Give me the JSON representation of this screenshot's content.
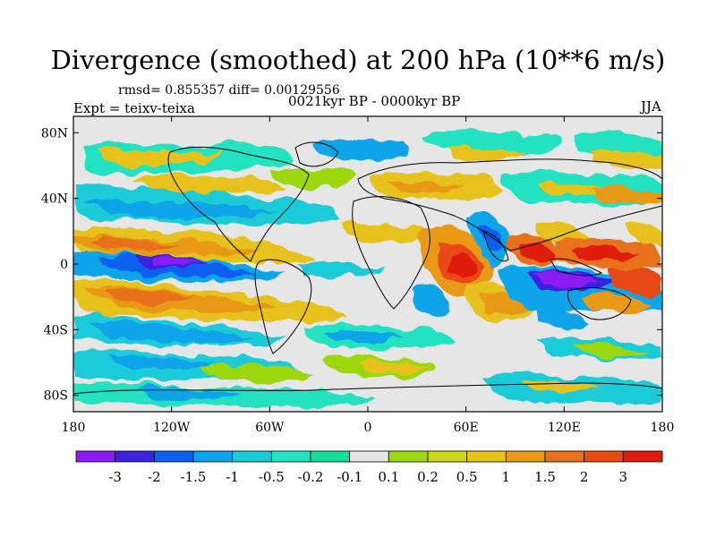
{
  "title": "Divergence (smoothed) at 200 hPa (10**6 m/s)",
  "stats_line": "rmsd= 0.855357 diff= 0.00129556",
  "experiment": "Expt = teixv-teixa",
  "period": "0021kyr BP - 0000kyr BP",
  "season": "JJA",
  "x_ticks": [
    {
      "lon": -180,
      "label": "180"
    },
    {
      "lon": -120,
      "label": "120W"
    },
    {
      "lon": -60,
      "label": "60W"
    },
    {
      "lon": 0,
      "label": "0"
    },
    {
      "lon": 60,
      "label": "60E"
    },
    {
      "lon": 120,
      "label": "120E"
    },
    {
      "lon": 180,
      "label": "180"
    }
  ],
  "y_ticks": [
    {
      "lat": 80,
      "label": "80N"
    },
    {
      "lat": 40,
      "label": "40N"
    },
    {
      "lat": 0,
      "label": "0"
    },
    {
      "lat": -40,
      "label": "40S"
    },
    {
      "lat": -80,
      "label": "80S"
    }
  ],
  "colorbar": {
    "colors": [
      "#8c1bf5",
      "#3a24e0",
      "#0d5ff0",
      "#0aa4ea",
      "#1ccbd8",
      "#22e2c2",
      "#14e09a",
      "#e6e6e6",
      "#9ad80f",
      "#cfd814",
      "#e8c21a",
      "#e89a16",
      "#e8721a",
      "#e84a14",
      "#e01a0e"
    ],
    "labels": [
      "-3",
      "-2",
      "-1.5",
      "-1",
      "-0.5",
      "-0.2",
      "-0.1",
      "0.1",
      "0.2",
      "0.5",
      "1",
      "1.5",
      "2",
      "3"
    ]
  },
  "colors": {
    "neutral": "#e6e6e6",
    "coast": "#000000"
  }
}
